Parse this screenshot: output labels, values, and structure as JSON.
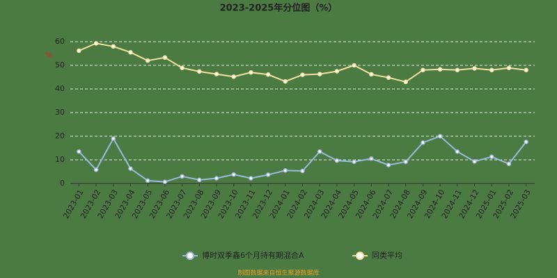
{
  "chart_data": {
    "type": "line",
    "title": "2023-2025年分位图（%）",
    "y_label": "%",
    "categories": [
      "2023-01",
      "2023-02",
      "2023-03",
      "2023-04",
      "2023-05",
      "2023-06",
      "2023-07",
      "2023-08",
      "2023-09",
      "2023-10",
      "2023-11",
      "2023-12",
      "2024-01",
      "2024-02",
      "2024-03",
      "2024-04",
      "2024-05",
      "2024-06",
      "2024-07",
      "2024-08",
      "2024-09",
      "2024-10",
      "2024-11",
      "2024-12",
      "2025-01",
      "2025-02",
      "2025-03"
    ],
    "series": [
      {
        "name": "博时双季鑫6个月持有期混合A",
        "color": "#9dbbdc",
        "values": [
          13.5,
          5.8,
          19,
          6.3,
          1.2,
          0.7,
          3.0,
          1.5,
          2.2,
          3.8,
          2.2,
          3.7,
          5.5,
          5.3,
          13.5,
          9.7,
          9.2,
          10.5,
          7.8,
          9.2,
          17.3,
          20,
          13.5,
          9.3,
          11.3,
          8.3,
          17.6
        ]
      },
      {
        "name": "同类平均",
        "color": "#f3e3a0",
        "values": [
          56.2,
          59.3,
          58.0,
          55.5,
          52.0,
          53.3,
          48.9,
          47.4,
          46.3,
          45.2,
          47.0,
          46.1,
          43.2,
          46.0,
          46.3,
          47.5,
          50.0,
          46.2,
          44.8,
          43.0,
          48.0,
          48.3,
          48.0,
          48.7,
          48.0,
          48.9,
          48.0
        ]
      }
    ],
    "ylim": [
      0,
      60
    ],
    "yticks": [
      0,
      10,
      20,
      30,
      40,
      50,
      60
    ],
    "grid": true,
    "legend": "bottom",
    "footer": "制图数据来自恒生聚源数据库"
  }
}
